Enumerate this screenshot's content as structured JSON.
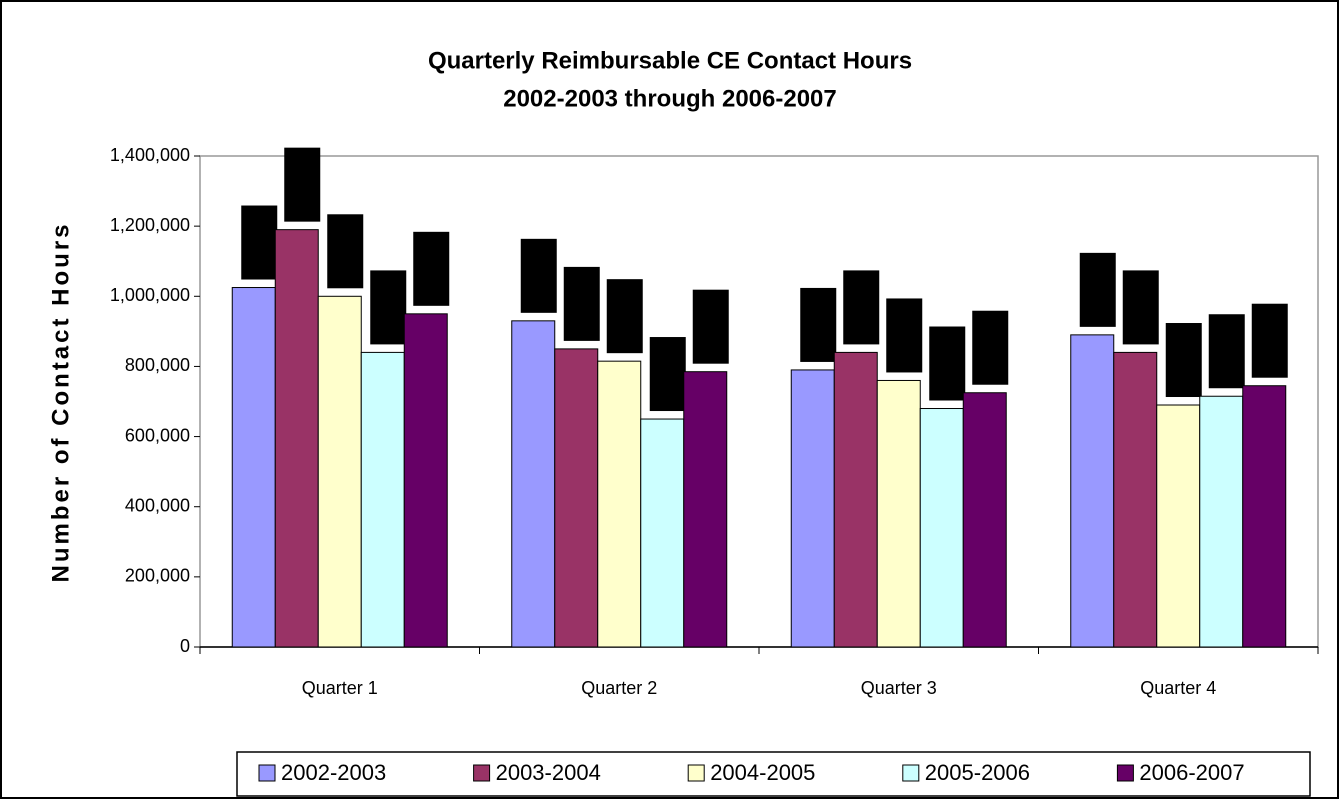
{
  "chart_data": {
    "type": "bar",
    "title": "Quarterly Reimbursable CE Contact Hours",
    "subtitle": "2002-2003 through 2006-2007",
    "y_label": "Number of Contact Hours",
    "categories": [
      "Quarter 1",
      "Quarter 2",
      "Quarter 3",
      "Quarter 4"
    ],
    "series": [
      {
        "name": "2002-2003",
        "color": "#9999ff",
        "values": [
          1025000,
          930000,
          790000,
          890000
        ]
      },
      {
        "name": "2003-2004",
        "color": "#993366",
        "values": [
          1190000,
          850000,
          840000,
          840000
        ]
      },
      {
        "name": "2004-2005",
        "color": "#ffffcc",
        "values": [
          1000000,
          815000,
          760000,
          690000
        ]
      },
      {
        "name": "2005-2006",
        "color": "#ccffff",
        "values": [
          840000,
          650000,
          680000,
          715000
        ]
      },
      {
        "name": "2006-2007",
        "color": "#660066",
        "values": [
          950000,
          785000,
          725000,
          745000
        ]
      }
    ],
    "ylim": [
      0,
      1400000
    ],
    "yticks": [
      0,
      {
        "value": 200000,
        "label": "200,000"
      },
      {
        "value": 400000,
        "label": "400,000"
      },
      {
        "value": 600000,
        "label": "600,000"
      },
      {
        "value": 800000,
        "label": "800,000"
      },
      {
        "value": 1000000,
        "label": "1,000,000"
      },
      {
        "value": 1200000,
        "label": "1,200,000"
      },
      {
        "value": 1400000,
        "label": "1,400,000"
      }
    ],
    "grid": false,
    "legend": "bottom"
  }
}
